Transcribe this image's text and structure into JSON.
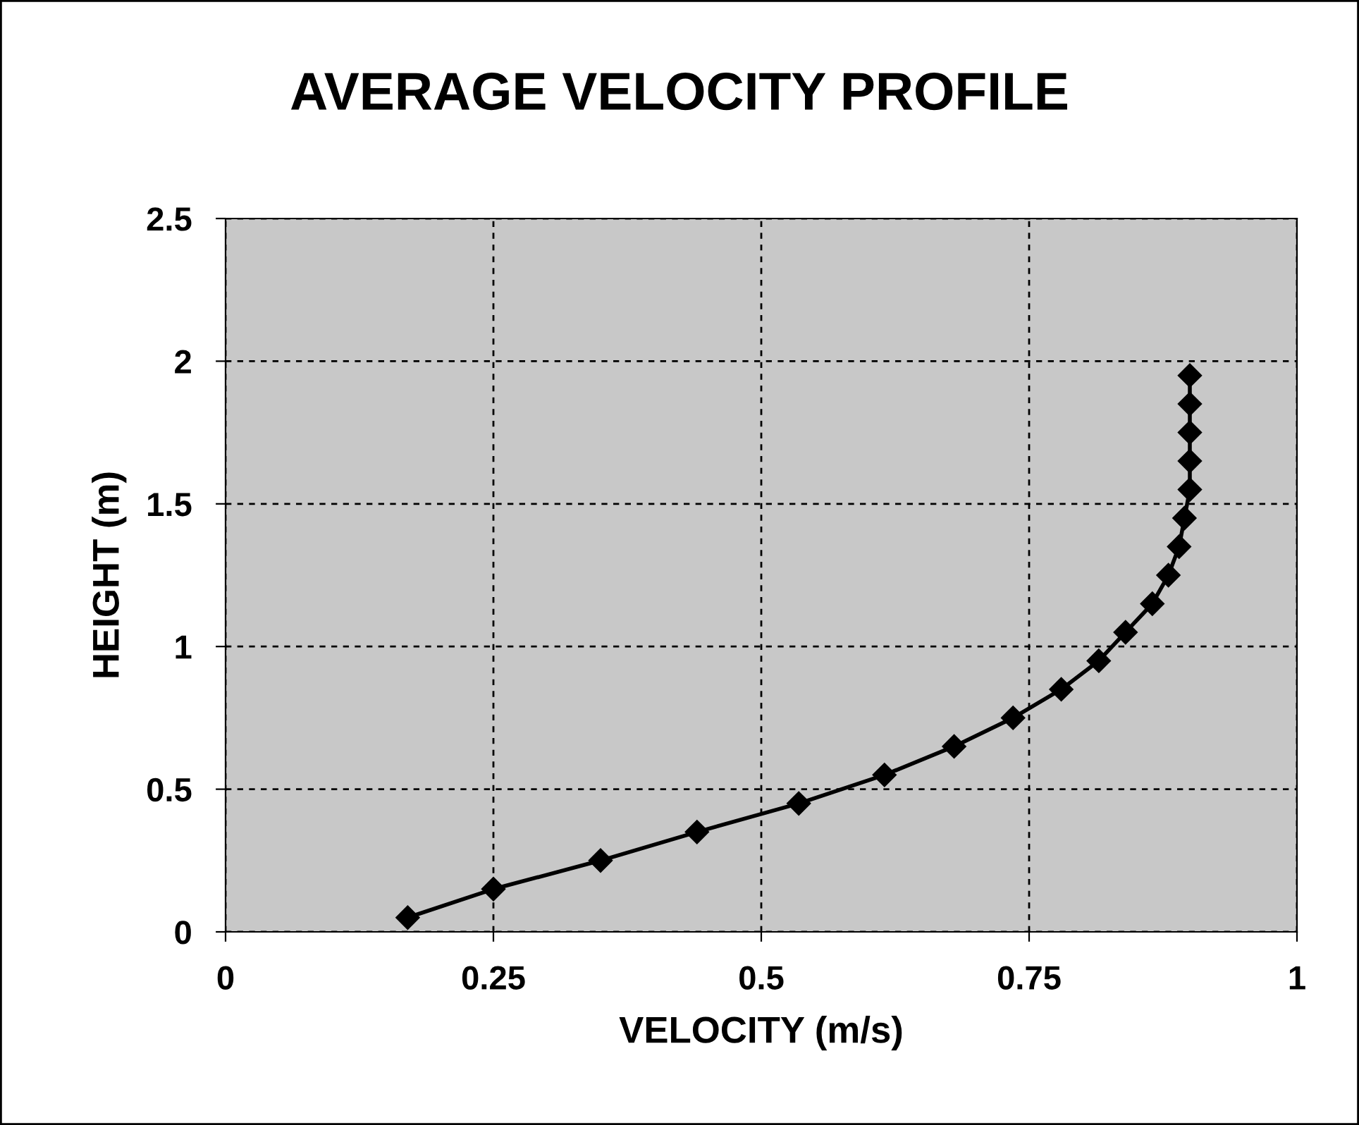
{
  "chart_data": {
    "type": "line",
    "title": "AVERAGE VELOCITY PROFILE",
    "xlabel": "VELOCITY (m/s)",
    "ylabel": "HEIGHT (m)",
    "series": [
      {
        "color": "#000000",
        "x": [
          0.17,
          0.25,
          0.35,
          0.44,
          0.535,
          0.615,
          0.68,
          0.735,
          0.78,
          0.815,
          0.84,
          0.865,
          0.88,
          0.89,
          0.895,
          0.9,
          0.9,
          0.9,
          0.9,
          0.9
        ],
        "values": [
          0.05,
          0.15,
          0.25,
          0.35,
          0.45,
          0.55,
          0.65,
          0.75,
          0.85,
          0.95,
          1.05,
          1.15,
          1.25,
          1.35,
          1.45,
          1.55,
          1.65,
          1.75,
          1.85,
          1.95
        ]
      }
    ],
    "xlim": [
      0,
      1
    ],
    "xticks": [
      0,
      0.25,
      0.5,
      0.75,
      1
    ],
    "ylim": [
      0,
      2.5
    ],
    "yticks": [
      0,
      0.5,
      1,
      1.5,
      2,
      2.5
    ],
    "grid": true,
    "marker": "diamond",
    "line_style": "solid",
    "legend": false
  }
}
